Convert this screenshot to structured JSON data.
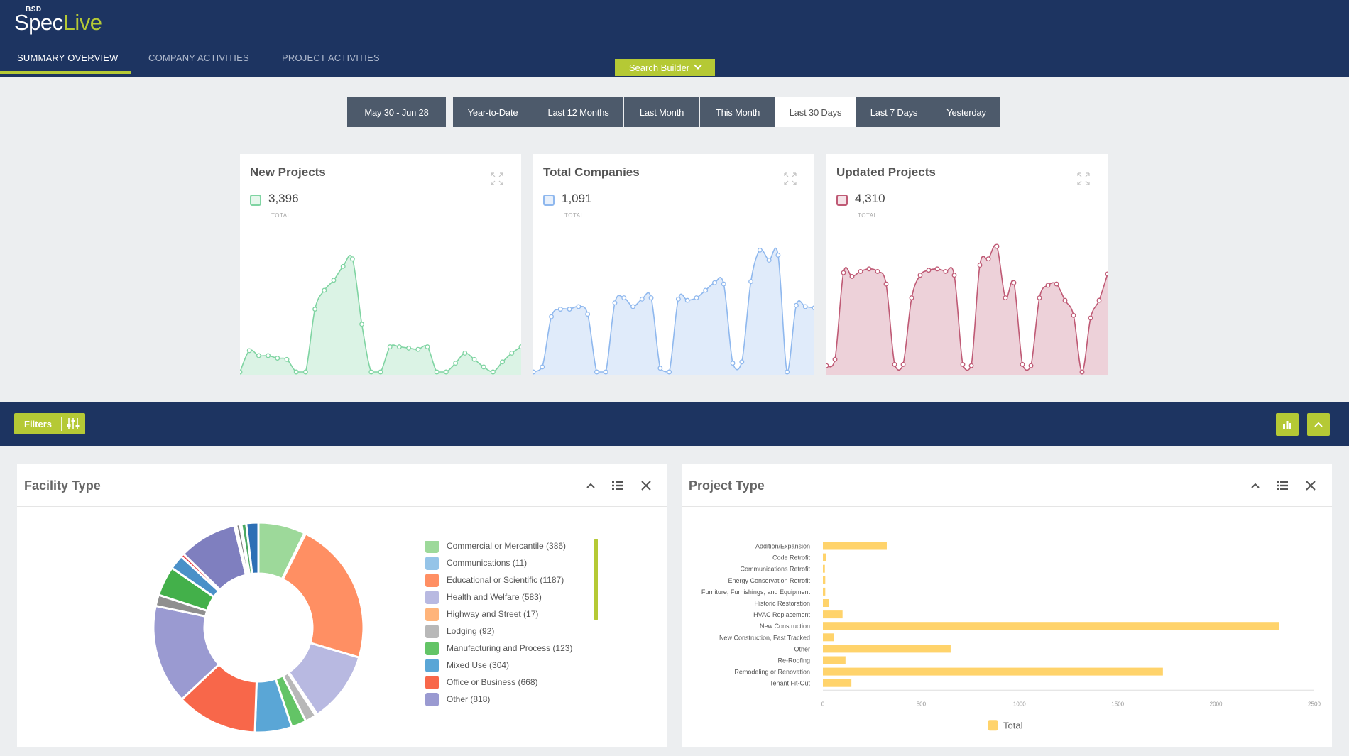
{
  "header": {
    "logo_small": "BSD",
    "logo_spec": "Spec",
    "logo_live": "Live",
    "tabs": [
      {
        "label": "SUMMARY OVERVIEW",
        "active": true
      },
      {
        "label": "COMPANY ACTIVITIES",
        "active": false
      },
      {
        "label": "PROJECT ACTIVITIES",
        "active": false
      }
    ],
    "search_builder": "Search Builder"
  },
  "date_range": {
    "current": "May 30 - Jun 28",
    "options": [
      "Year-to-Date",
      "Last 12 Months",
      "Last Month",
      "This Month",
      "Last 30 Days",
      "Last 7 Days",
      "Yesterday"
    ],
    "selected": "Last 30 Days"
  },
  "stats": [
    {
      "title": "New Projects",
      "value": "3,396",
      "label": "TOTAL",
      "color": "#7fd4a2",
      "series": [
        0,
        0.17,
        0.13,
        0.13,
        0.11,
        0.1,
        0,
        0,
        0.5,
        0.65,
        0.73,
        0.84,
        0.9,
        0.38,
        0,
        0,
        0.2,
        0.2,
        0.19,
        0.18,
        0.2,
        0,
        0,
        0.07,
        0.15,
        0.1,
        0.04,
        0,
        0.08,
        0.15,
        0.2
      ]
    },
    {
      "title": "Total Companies",
      "value": "1,091",
      "label": "TOTAL",
      "color": "#8fb8ee",
      "series": [
        0,
        0.04,
        0.44,
        0.5,
        0.5,
        0.52,
        0.46,
        0,
        0,
        0.55,
        0.59,
        0.52,
        0.58,
        0.59,
        0.03,
        0,
        0.58,
        0.57,
        0.59,
        0.65,
        0.71,
        0.7,
        0.07,
        0.08,
        0.72,
        0.97,
        0.89,
        0.93,
        0,
        0.53,
        0.52,
        0.51
      ]
    },
    {
      "title": "Updated Projects",
      "value": "4,310",
      "label": "TOTAL",
      "color": "#bf5a75",
      "series": [
        0.05,
        0.1,
        0.79,
        0.76,
        0.8,
        0.82,
        0.8,
        0.7,
        0.06,
        0.06,
        0.59,
        0.77,
        0.81,
        0.82,
        0.8,
        0.77,
        0.06,
        0.05,
        0.85,
        0.9,
        1,
        0.59,
        0.71,
        0.06,
        0.05,
        0.59,
        0.69,
        0.7,
        0.57,
        0.45,
        0,
        0.43,
        0.57,
        0.78
      ]
    }
  ],
  "filter_bar": {
    "filters_label": "Filters"
  },
  "facility": {
    "title": "Facility Type",
    "legend": [
      {
        "label": "Commercial or Mercantile (386)",
        "value": 386,
        "color": "#9dd99a"
      },
      {
        "label": "Communications (11)",
        "value": 11,
        "color": "#95c4e8"
      },
      {
        "label": "Educational or Scientific (1187)",
        "value": 1187,
        "color": "#ff8f63"
      },
      {
        "label": "Health and Welfare (583)",
        "value": 583,
        "color": "#b8b9e1"
      },
      {
        "label": "Highway and Street (17)",
        "value": 17,
        "color": "#ffb47a"
      },
      {
        "label": "Lodging (92)",
        "value": 92,
        "color": "#b8b8b8"
      },
      {
        "label": "Manufacturing and Process (123)",
        "value": 123,
        "color": "#63c466"
      },
      {
        "label": "Mixed Use (304)",
        "value": 304,
        "color": "#5aa6d6"
      },
      {
        "label": "Office or Business (668)",
        "value": 668,
        "color": "#f8674a"
      },
      {
        "label": "Other (818)",
        "value": 818,
        "color": "#9a9ad1"
      }
    ],
    "extra_slices": [
      {
        "value": 92,
        "color": "#8f8f8f"
      },
      {
        "value": 244,
        "color": "#43b04a"
      },
      {
        "value": 120,
        "color": "#4a90c8"
      },
      {
        "value": 28,
        "color": "#e8373c"
      },
      {
        "value": 478,
        "color": "#7f7fbf"
      },
      {
        "value": 16,
        "color": "#f0c8b0"
      },
      {
        "value": 30,
        "color": "#7a7a7a"
      },
      {
        "value": 12,
        "color": "#3c9a3c"
      },
      {
        "value": 40,
        "color": "#4aa862"
      },
      {
        "value": 100,
        "color": "#2d6fb5"
      }
    ]
  },
  "project": {
    "title": "Project Type",
    "chart_data": {
      "type": "bar",
      "orientation": "horizontal",
      "categories": [
        "Addition/Expansion",
        "Code Retrofit",
        "Communications Retrofit",
        "Energy Conservation Retrofit",
        "Furniture, Furnishings, and Equipment",
        "Historic Restoration",
        "HVAC Replacement",
        "New Construction",
        "New Construction, Fast Tracked",
        "Other",
        "Re-Roofing",
        "Remodeling or Renovation",
        "Tenant Fit-Out"
      ],
      "series": [
        {
          "name": "Total",
          "values": [
            325,
            15,
            10,
            12,
            12,
            32,
            100,
            2320,
            55,
            650,
            115,
            1730,
            145
          ],
          "color": "#ffd36b"
        }
      ],
      "xlim": [
        0,
        2500
      ],
      "ticks": [
        "0",
        "500",
        "1000",
        "1500",
        "2000",
        "2500"
      ],
      "legend": "bottom"
    }
  }
}
